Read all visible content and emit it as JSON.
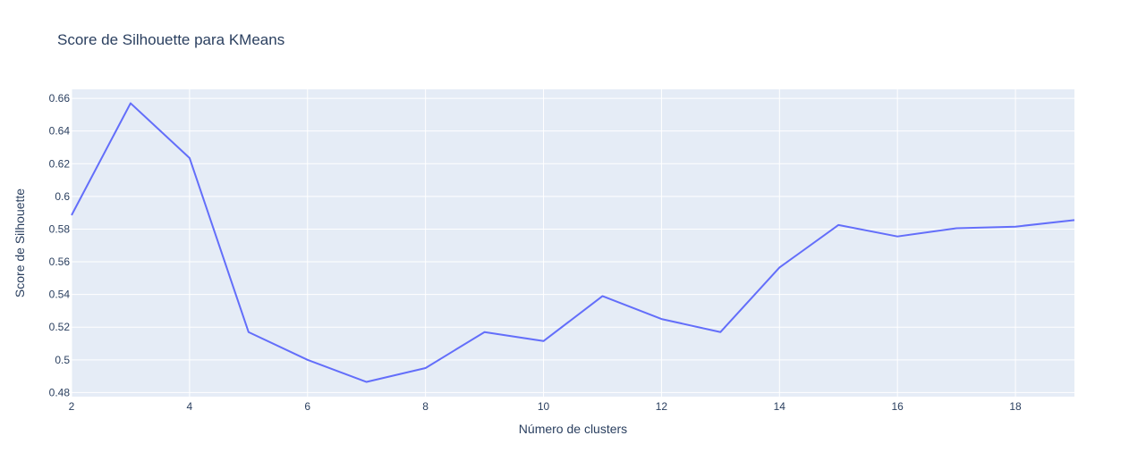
{
  "chart_data": {
    "type": "line",
    "title": "Score de Silhouette para KMeans",
    "xlabel": "Número de clusters",
    "ylabel": "Score de Silhouette",
    "x": [
      2,
      3,
      4,
      5,
      6,
      7,
      8,
      9,
      10,
      11,
      12,
      13,
      14,
      15,
      16,
      17,
      18,
      19
    ],
    "series": [
      {
        "name": "",
        "color": "#636efa",
        "values": [
          0.5885,
          0.657,
          0.6235,
          0.517,
          0.5,
          0.4865,
          0.495,
          0.517,
          0.5115,
          0.539,
          0.525,
          0.517,
          0.5565,
          0.5825,
          0.5755,
          0.5805,
          0.5815,
          0.5855
        ]
      }
    ],
    "xlim": [
      2,
      19
    ],
    "ylim": [
      0.4775,
      0.6655
    ],
    "xticks": [
      2,
      4,
      6,
      8,
      10,
      12,
      14,
      16,
      18
    ],
    "xtick_labels": [
      "2",
      "4",
      "6",
      "8",
      "10",
      "12",
      "14",
      "16",
      "18"
    ],
    "yticks": [
      0.48,
      0.5,
      0.52,
      0.54,
      0.56,
      0.58,
      0.6,
      0.62,
      0.64,
      0.66
    ],
    "ytick_labels": [
      "0.48",
      "0.5",
      "0.52",
      "0.54",
      "0.56",
      "0.58",
      "0.6",
      "0.62",
      "0.64",
      "0.66"
    ],
    "grid": true,
    "plot_bgcolor": "#e5ecf6",
    "grid_color": "#ffffff",
    "text_color": "#2a3f5f"
  }
}
